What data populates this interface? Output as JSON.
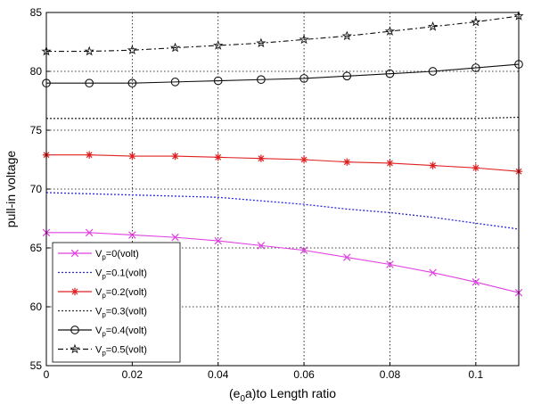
{
  "chart_data": {
    "type": "line",
    "title": "",
    "xlabel": "(e",
    "xlabel_sub": "0",
    "xlabel_rest": "a)to Length ratio",
    "ylabel": "pull-in voltage",
    "xlim": [
      0,
      0.11
    ],
    "ylim": [
      55,
      85
    ],
    "grid": true,
    "legend_position": "bottom-left",
    "x_ticks": [
      0,
      0.02,
      0.04,
      0.06,
      0.08,
      0.1
    ],
    "x_tick_labels": [
      "0",
      "0.02",
      "0.04",
      "0.06",
      "0.08",
      "0.1"
    ],
    "y_ticks": [
      55,
      60,
      65,
      70,
      75,
      80,
      85
    ],
    "y_tick_labels": [
      "55",
      "60",
      "65",
      "70",
      "75",
      "80",
      "85"
    ],
    "x": [
      0,
      0.01,
      0.02,
      0.03,
      0.04,
      0.05,
      0.06,
      0.07,
      0.08,
      0.09,
      0.1,
      0.11
    ],
    "series": [
      {
        "name_main": "V",
        "name_sub": "p",
        "name_rest": "=0(volt)",
        "color": "#e040e0",
        "dash": "",
        "marker": "x",
        "values": [
          66.3,
          66.3,
          66.1,
          65.9,
          65.6,
          65.2,
          64.8,
          64.2,
          63.6,
          62.9,
          62.1,
          61.2
        ]
      },
      {
        "name_main": "V",
        "name_sub": "p",
        "name_rest": "=0.1(volt)",
        "color": "#2a2ad8",
        "dash": "2,2",
        "marker": "none",
        "values": [
          69.7,
          69.6,
          69.5,
          69.4,
          69.3,
          69.0,
          68.7,
          68.3,
          68.0,
          67.6,
          67.1,
          66.6
        ]
      },
      {
        "name_main": "V",
        "name_sub": "p",
        "name_rest": "=0.2(volt)",
        "color": "#e02020",
        "dash": "",
        "marker": "star",
        "values": [
          72.9,
          72.9,
          72.8,
          72.8,
          72.7,
          72.6,
          72.5,
          72.3,
          72.2,
          72.0,
          71.8,
          71.5
        ]
      },
      {
        "name_main": "V",
        "name_sub": "p",
        "name_rest": "=0.3(volt)",
        "color": "#333333",
        "dash": "2,2",
        "marker": "none",
        "values": [
          76.0,
          76.0,
          76.0,
          76.0,
          76.0,
          76.0,
          76.0,
          76.0,
          76.0,
          76.0,
          76.0,
          76.1
        ]
      },
      {
        "name_main": "V",
        "name_sub": "p",
        "name_rest": "=0.4(volt)",
        "color": "#111111",
        "dash": "",
        "marker": "circle",
        "values": [
          79.0,
          79.0,
          79.0,
          79.1,
          79.2,
          79.3,
          79.4,
          79.6,
          79.8,
          80.0,
          80.3,
          80.6
        ]
      },
      {
        "name_main": "V",
        "name_sub": "p",
        "name_rest": "=0.5(volt)",
        "color": "#111111",
        "dash": "6,3,2,3",
        "marker": "pentagram",
        "values": [
          81.7,
          81.7,
          81.8,
          82.0,
          82.2,
          82.4,
          82.7,
          83.0,
          83.4,
          83.8,
          84.2,
          84.7
        ]
      }
    ]
  }
}
